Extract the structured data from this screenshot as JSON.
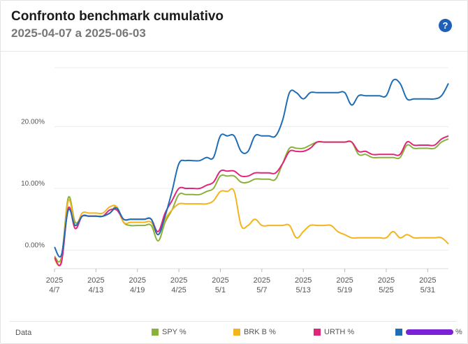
{
  "title": "Confronto benchmark cumulativo",
  "subtitle": "2025-04-07 a 2025-06-03",
  "help_label": "?",
  "legend_label": "Data",
  "chart_data": {
    "type": "line",
    "x_dates": [
      "2025-04-07",
      "2025-04-08",
      "2025-04-09",
      "2025-04-10",
      "2025-04-11",
      "2025-04-12",
      "2025-04-13",
      "2025-04-14",
      "2025-04-15",
      "2025-04-16",
      "2025-04-17",
      "2025-04-18",
      "2025-04-19",
      "2025-04-20",
      "2025-04-21",
      "2025-04-22",
      "2025-04-23",
      "2025-04-24",
      "2025-04-25",
      "2025-04-26",
      "2025-04-27",
      "2025-04-28",
      "2025-04-29",
      "2025-04-30",
      "2025-05-01",
      "2025-05-02",
      "2025-05-03",
      "2025-05-04",
      "2025-05-05",
      "2025-05-06",
      "2025-05-07",
      "2025-05-08",
      "2025-05-09",
      "2025-05-10",
      "2025-05-11",
      "2025-05-12",
      "2025-05-13",
      "2025-05-14",
      "2025-05-15",
      "2025-05-16",
      "2025-05-17",
      "2025-05-18",
      "2025-05-19",
      "2025-05-20",
      "2025-05-21",
      "2025-05-22",
      "2025-05-23",
      "2025-05-24",
      "2025-05-25",
      "2025-05-26",
      "2025-05-27",
      "2025-05-28",
      "2025-05-29",
      "2025-05-30",
      "2025-05-31",
      "2025-06-01",
      "2025-06-02",
      "2025-06-03"
    ],
    "tick_labels": [
      {
        "year": "2025",
        "date": "4/7"
      },
      {
        "year": "2025",
        "date": "4/13"
      },
      {
        "year": "2025",
        "date": "4/19"
      },
      {
        "year": "2025",
        "date": "4/25"
      },
      {
        "year": "2025",
        "date": "5/1"
      },
      {
        "year": "2025",
        "date": "5/7"
      },
      {
        "year": "2025",
        "date": "5/13"
      },
      {
        "year": "2025",
        "date": "5/19"
      },
      {
        "year": "2025",
        "date": "5/25"
      },
      {
        "year": "2025",
        "date": "5/31"
      }
    ],
    "y_ticks": [
      {
        "value": 0,
        "label": "0.00%"
      },
      {
        "value": 10,
        "label": "10.00%"
      },
      {
        "value": 20,
        "label": "20.00%"
      }
    ],
    "ylim": [
      -3,
      30
    ],
    "grid": true,
    "legend_position": "bottom",
    "series": [
      {
        "name": "SPY %",
        "color": "#8ab23a",
        "values": [
          -1.0,
          -1.2,
          8.5,
          4.5,
          5.5,
          5.5,
          5.5,
          5.5,
          6.0,
          7.0,
          4.5,
          4.0,
          4.0,
          4.0,
          4.0,
          1.5,
          4.5,
          6.5,
          9.0,
          9.0,
          9.0,
          9.0,
          9.5,
          10.0,
          12.0,
          12.0,
          12.0,
          11.0,
          11.0,
          11.5,
          11.5,
          11.5,
          11.5,
          14.0,
          16.5,
          16.5,
          16.5,
          17.0,
          17.5,
          17.5,
          17.5,
          17.5,
          17.5,
          17.5,
          15.5,
          15.5,
          15.0,
          15.0,
          15.0,
          15.0,
          15.0,
          17.0,
          16.5,
          16.5,
          16.5,
          16.5,
          17.5,
          18.0
        ]
      },
      {
        "name": "BRK B %",
        "color": "#f5b41e",
        "values": [
          -1.5,
          -1.8,
          8.0,
          4.0,
          6.0,
          6.0,
          6.0,
          6.0,
          7.0,
          7.0,
          4.5,
          4.5,
          4.5,
          4.5,
          4.5,
          2.5,
          5.0,
          6.5,
          7.5,
          7.5,
          7.5,
          7.5,
          7.5,
          8.0,
          9.5,
          9.5,
          9.5,
          4.0,
          4.0,
          5.0,
          4.0,
          4.0,
          4.0,
          4.0,
          4.0,
          2.0,
          3.0,
          4.0,
          4.0,
          4.0,
          4.0,
          3.0,
          2.5,
          2.0,
          2.0,
          2.0,
          2.0,
          2.0,
          2.0,
          3.0,
          2.0,
          2.5,
          2.0,
          2.0,
          2.0,
          2.0,
          2.0,
          1.0
        ]
      },
      {
        "name": "URTH %",
        "color": "#e0257a",
        "values": [
          -1.2,
          -2.0,
          6.8,
          3.5,
          5.5,
          5.5,
          5.5,
          5.5,
          6.5,
          6.5,
          5.0,
          5.0,
          5.0,
          5.0,
          5.0,
          3.0,
          6.0,
          8.0,
          10.0,
          10.0,
          10.0,
          10.0,
          10.5,
          11.0,
          12.8,
          12.8,
          12.8,
          12.0,
          12.0,
          12.5,
          12.5,
          12.5,
          12.5,
          14.0,
          16.0,
          16.0,
          16.0,
          16.5,
          17.5,
          17.5,
          17.5,
          17.5,
          17.5,
          17.5,
          16.0,
          16.0,
          15.5,
          15.5,
          15.5,
          15.5,
          15.5,
          17.5,
          17.0,
          17.0,
          17.0,
          17.0,
          18.0,
          18.5
        ]
      },
      {
        "name": "%",
        "color": "#1f6db5",
        "values": [
          0.5,
          -0.8,
          6.5,
          4.0,
          5.5,
          5.5,
          5.5,
          5.5,
          6.0,
          6.8,
          5.0,
          5.0,
          5.0,
          5.0,
          5.0,
          2.5,
          5.5,
          9.5,
          14.0,
          14.5,
          14.5,
          14.5,
          15.0,
          15.0,
          18.5,
          18.5,
          18.5,
          16.0,
          16.0,
          18.5,
          18.5,
          18.5,
          18.5,
          21.0,
          25.5,
          25.5,
          24.5,
          25.5,
          25.5,
          25.5,
          25.5,
          25.5,
          25.5,
          23.5,
          25.0,
          25.0,
          25.0,
          25.0,
          25.0,
          27.5,
          27.0,
          24.5,
          24.5,
          24.5,
          24.5,
          24.5,
          25.0,
          27.0
        ]
      }
    ]
  }
}
